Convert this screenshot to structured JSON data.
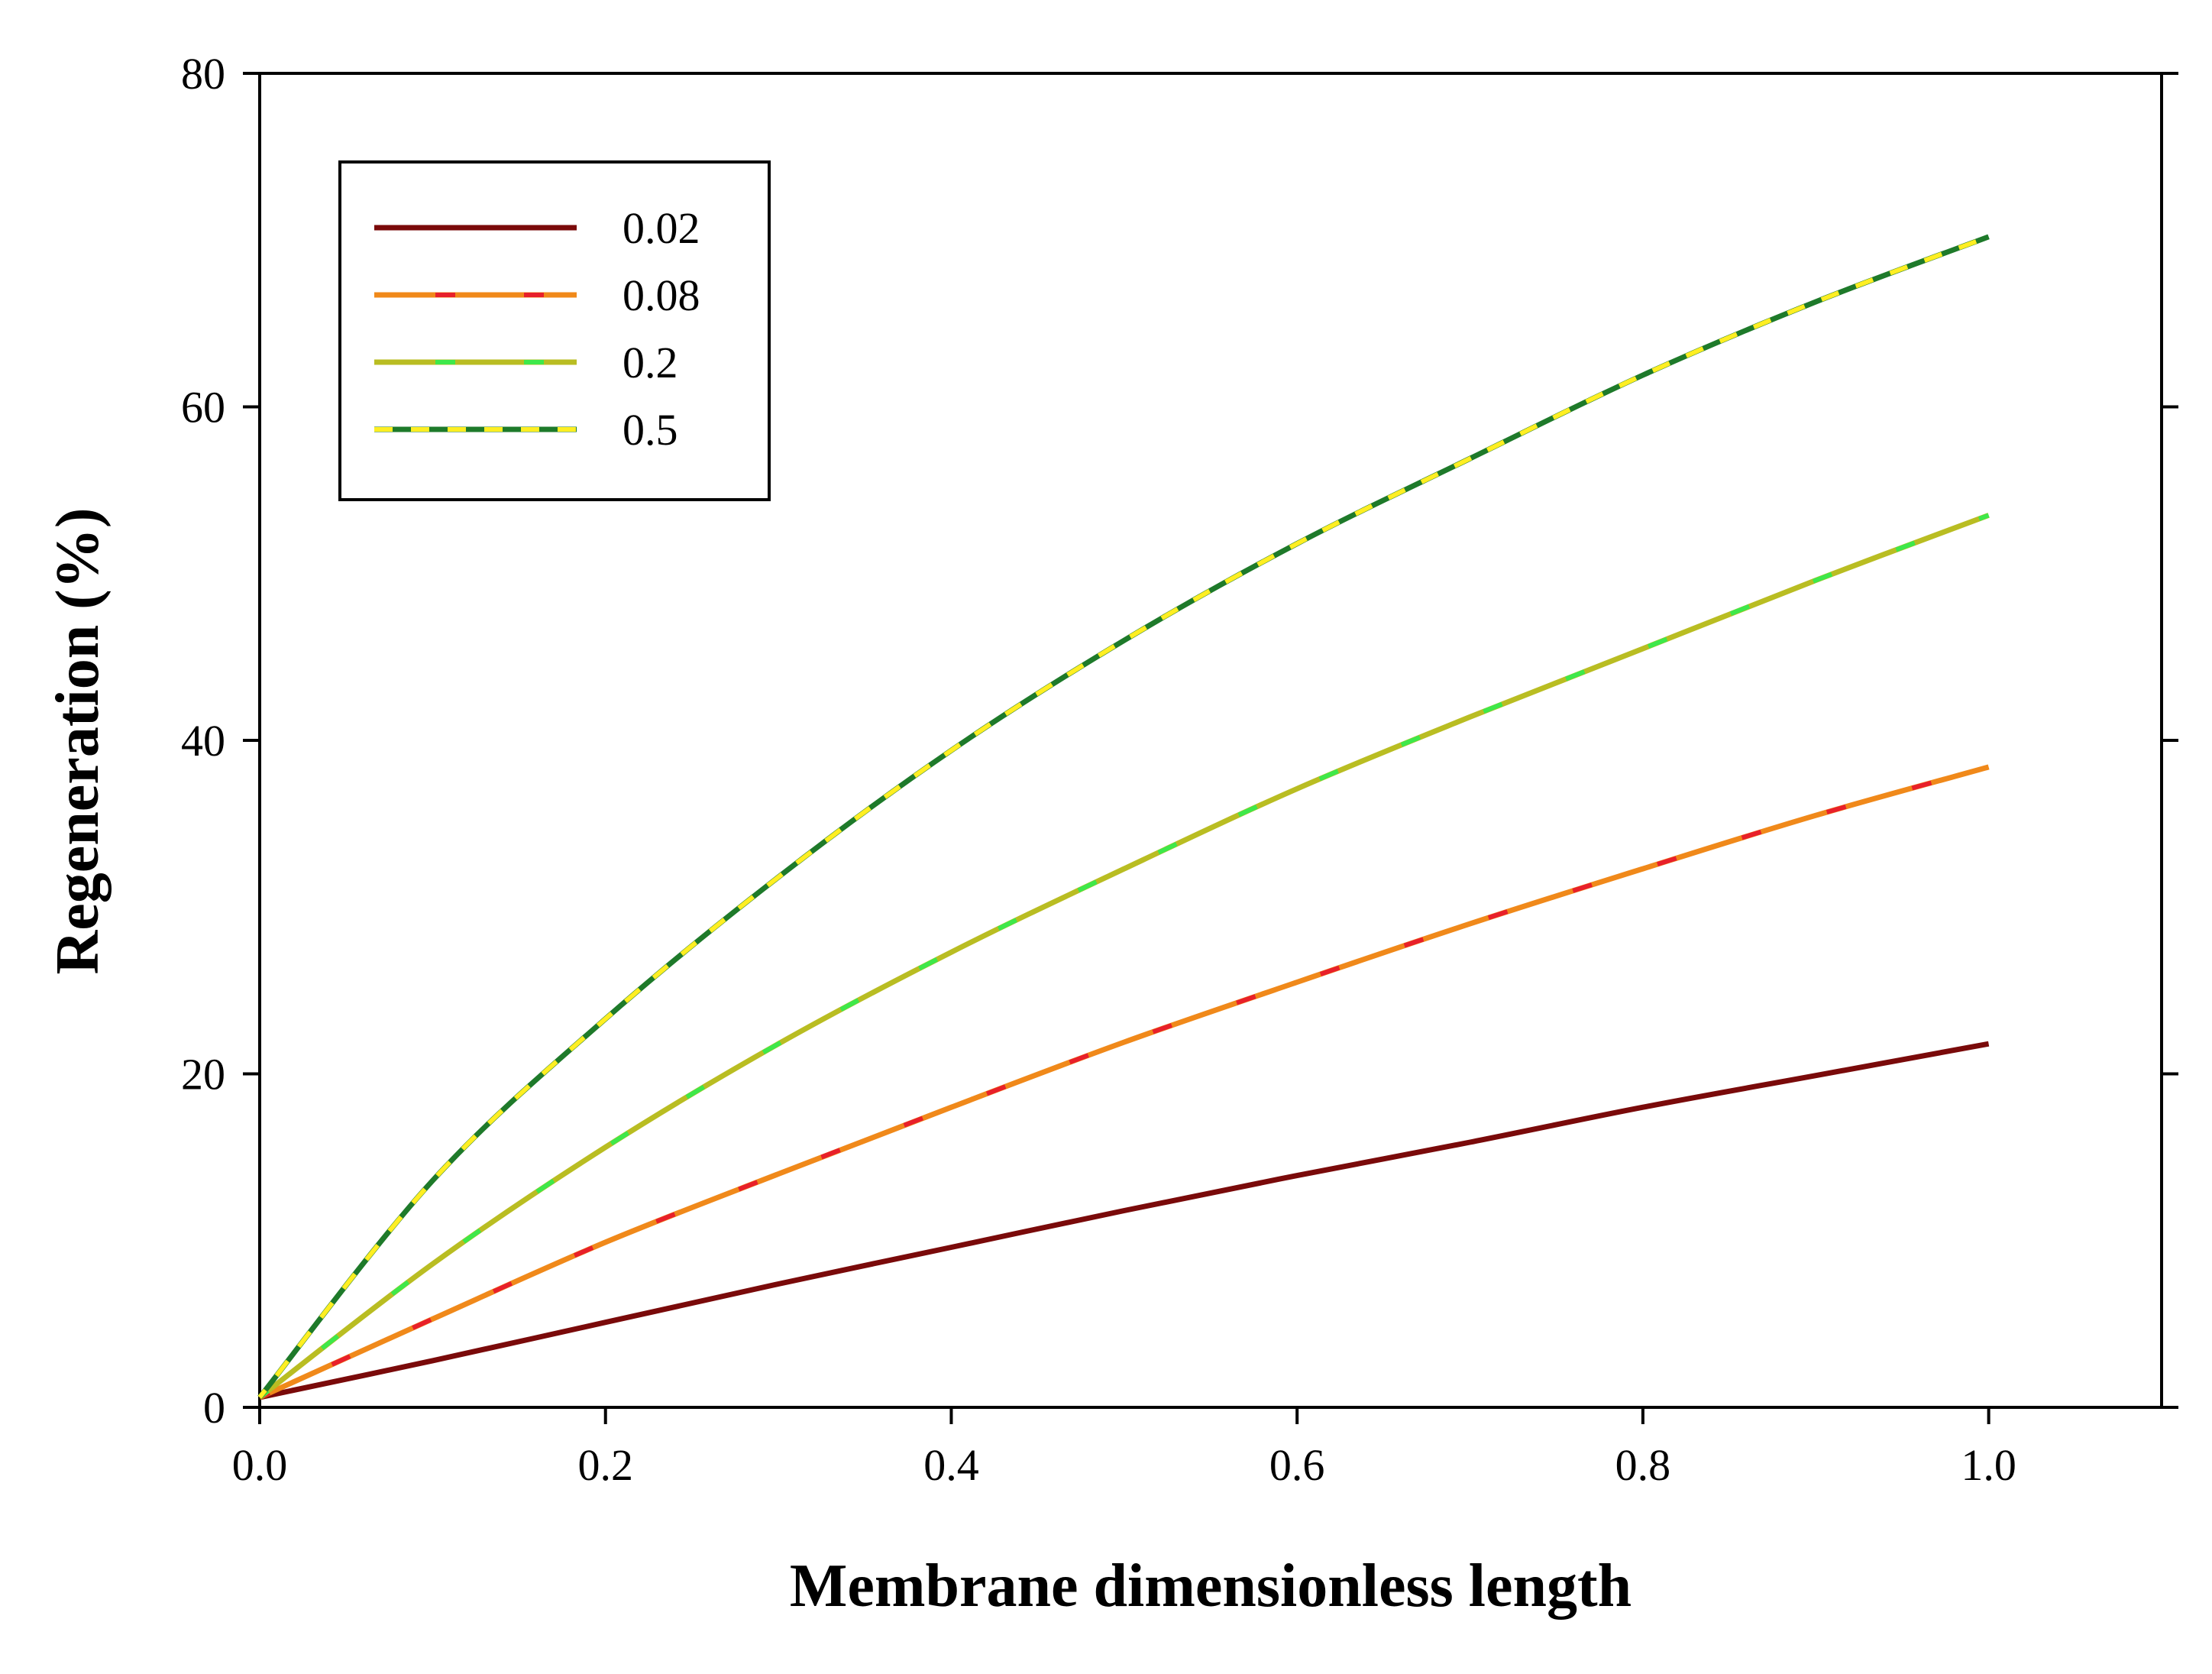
{
  "chart_data": {
    "type": "line",
    "title": "",
    "xlabel": "Membrane dimensionless length",
    "ylabel": "Regeneration (%)",
    "xlim": [
      0,
      1.1
    ],
    "ylim": [
      0,
      80
    ],
    "xticks": [
      0.0,
      0.2,
      0.4,
      0.6,
      0.8,
      1.0
    ],
    "xtick_labels": [
      "0.0",
      "0.2",
      "0.4",
      "0.6",
      "0.8",
      "1.0"
    ],
    "yticks": [
      0,
      20,
      40,
      60,
      80
    ],
    "ytick_labels": [
      "0",
      "20",
      "40",
      "60",
      "80"
    ],
    "grid": false,
    "legend_position": "top-left",
    "x": [
      0.0,
      0.1,
      0.2,
      0.3,
      0.4,
      0.5,
      0.6,
      0.7,
      0.8,
      0.9,
      1.0
    ],
    "series": [
      {
        "name": "0.02",
        "color": "#7a0a0a",
        "dash_color": "",
        "values": [
          0.6,
          2.8,
          5.1,
          7.4,
          9.6,
          11.8,
          13.9,
          15.9,
          18.0,
          19.9,
          21.8
        ]
      },
      {
        "name": "0.08",
        "color": "#f0891a",
        "dash_color": "#e8202a",
        "values": [
          0.6,
          5.3,
          9.9,
          14.0,
          18.0,
          21.9,
          25.5,
          29.0,
          32.3,
          35.5,
          38.4
        ]
      },
      {
        "name": "0.2",
        "color": "#b9bd22",
        "dash_color": "#3ee84a",
        "values": [
          0.6,
          8.6,
          15.6,
          21.8,
          27.3,
          32.3,
          37.1,
          41.4,
          45.5,
          49.6,
          53.5
        ]
      },
      {
        "name": "0.5",
        "color": "#1e7a2a",
        "dash_color": "#ffee22",
        "values": [
          0.6,
          13.6,
          23.3,
          31.8,
          39.4,
          46.0,
          51.8,
          56.9,
          61.9,
          66.3,
          70.2
        ]
      }
    ]
  }
}
